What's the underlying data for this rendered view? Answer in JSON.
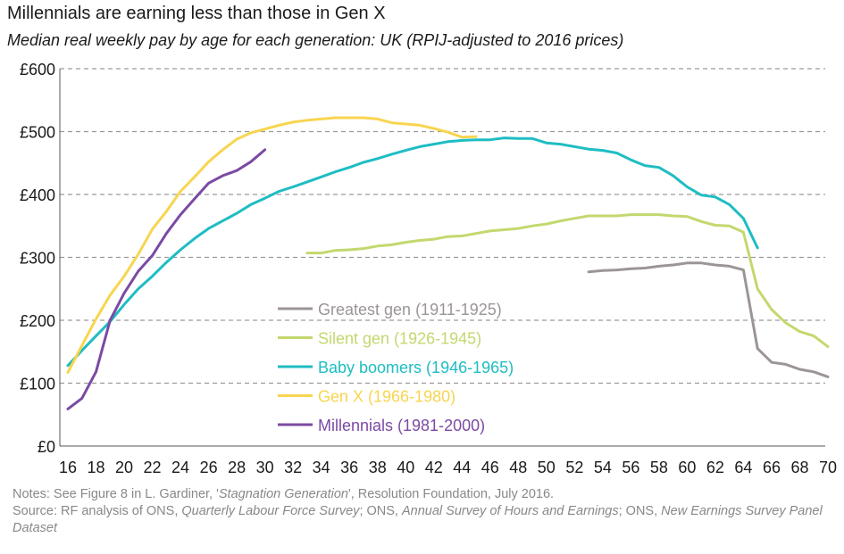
{
  "header": {
    "title": "Millennials are earning less than those in Gen X",
    "subtitle": "Median real weekly pay by age for each generation: UK (RPIJ-adjusted to 2016 prices)"
  },
  "notes": {
    "line1_prefix": "Notes: See Figure 8 in L. Gardiner, '",
    "line1_title": "Stagnation Generation",
    "line1_suffix": "', Resolution Foundation, July 2016.",
    "line2_prefix": "Source: RF analysis of ONS, ",
    "line2_src1": "Quarterly Labour Force Survey",
    "line2_mid1": "; ONS, ",
    "line2_src2": "Annual Survey of Hours and Earnings",
    "line2_mid2": "; ONS, ",
    "line2_src3": "New Earnings Survey Panel Dataset"
  },
  "chart_data": {
    "type": "line",
    "title": "Millennials are earning less than those in Gen X",
    "subtitle": "Median real weekly pay by age for each generation: UK (RPIJ-adjusted to 2016 prices)",
    "xlabel": "",
    "ylabel": "",
    "xlim": [
      16,
      70
    ],
    "ylim": [
      0,
      600
    ],
    "x_ticks": [
      16,
      18,
      20,
      22,
      24,
      26,
      28,
      30,
      32,
      34,
      36,
      38,
      40,
      42,
      44,
      46,
      48,
      50,
      52,
      54,
      56,
      58,
      60,
      62,
      64,
      66,
      68,
      70
    ],
    "y_ticks": [
      0,
      100,
      200,
      300,
      400,
      500,
      600
    ],
    "y_tick_labels": [
      "£0",
      "£100",
      "£200",
      "£300",
      "£400",
      "£500",
      "£600"
    ],
    "grid": "horizontal dashed",
    "legend_position": "center-left",
    "series": [
      {
        "name": "Greatest gen (1911-1925)",
        "color": "#9c9595",
        "x": [
          53,
          54,
          55,
          56,
          57,
          58,
          59,
          60,
          61,
          62,
          63,
          64,
          65,
          66,
          67,
          68,
          69,
          70
        ],
        "values": [
          277,
          279,
          280,
          282,
          283,
          286,
          288,
          291,
          291,
          288,
          286,
          280,
          155,
          133,
          130,
          122,
          118,
          110
        ]
      },
      {
        "name": "Silent gen (1926-1945)",
        "color": "#c3d86e",
        "x": [
          33,
          34,
          35,
          36,
          37,
          38,
          39,
          40,
          41,
          42,
          43,
          44,
          45,
          46,
          47,
          48,
          49,
          50,
          51,
          52,
          53,
          54,
          55,
          56,
          57,
          58,
          59,
          60,
          61,
          62,
          63,
          64,
          65,
          66,
          67,
          68,
          69,
          70
        ],
        "values": [
          307,
          307,
          311,
          312,
          314,
          318,
          320,
          324,
          327,
          329,
          333,
          334,
          338,
          342,
          344,
          346,
          350,
          353,
          358,
          362,
          366,
          366,
          366,
          368,
          368,
          368,
          366,
          365,
          357,
          351,
          350,
          340,
          250,
          217,
          196,
          182,
          175,
          158
        ]
      },
      {
        "name": "Baby boomers (1946-1965)",
        "color": "#1ebdc3",
        "x": [
          16,
          17,
          18,
          19,
          20,
          21,
          22,
          23,
          24,
          25,
          26,
          27,
          28,
          29,
          30,
          31,
          32,
          33,
          34,
          35,
          36,
          37,
          38,
          39,
          40,
          41,
          42,
          43,
          44,
          45,
          46,
          47,
          48,
          49,
          50,
          51,
          52,
          53,
          54,
          55,
          56,
          57,
          58,
          59,
          60,
          61,
          62,
          63,
          64,
          65
        ],
        "values": [
          128,
          152,
          175,
          198,
          225,
          250,
          270,
          292,
          312,
          330,
          346,
          358,
          370,
          384,
          394,
          405,
          412,
          420,
          428,
          436,
          443,
          451,
          457,
          464,
          470,
          476,
          480,
          484,
          486,
          487,
          487,
          490,
          489,
          489,
          482,
          480,
          476,
          472,
          470,
          466,
          455,
          446,
          443,
          430,
          412,
          399,
          396,
          384,
          362,
          315
        ]
      },
      {
        "name": "Gen X (1966-1980)",
        "color": "#f8d550",
        "x": [
          16,
          17,
          18,
          19,
          20,
          21,
          22,
          23,
          24,
          25,
          26,
          27,
          28,
          29,
          30,
          31,
          32,
          33,
          34,
          35,
          36,
          37,
          38,
          39,
          40,
          41,
          42,
          43,
          44,
          45
        ],
        "values": [
          117,
          160,
          202,
          240,
          270,
          305,
          345,
          373,
          405,
          428,
          452,
          471,
          488,
          498,
          504,
          510,
          515,
          518,
          520,
          522,
          522,
          522,
          520,
          514,
          512,
          510,
          505,
          499,
          491,
          492
        ]
      },
      {
        "name": "Millennials (1981-2000)",
        "color": "#7b4aa3",
        "x": [
          16,
          17,
          18,
          19,
          20,
          21,
          22,
          23,
          24,
          25,
          26,
          27,
          28,
          29,
          30
        ],
        "values": [
          59,
          76,
          118,
          200,
          243,
          278,
          303,
          338,
          368,
          393,
          418,
          430,
          438,
          452,
          471
        ]
      }
    ]
  }
}
